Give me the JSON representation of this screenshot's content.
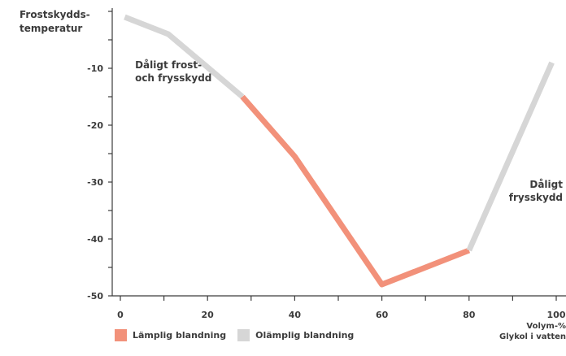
{
  "colors": {
    "suitable": "#f2917a",
    "unsuitable": "#d6d6d6",
    "axis": "#3c3c3c"
  },
  "legend": {
    "suitable_label": "Lämplig blandning",
    "unsuitable_label": "Olämplig blandning"
  },
  "chart_data": {
    "type": "line",
    "ylabel": "Frostskydds-\ntemperatur",
    "xlabel": "Volym-%\nGlykol i vatten",
    "x_ticks": [
      0,
      20,
      40,
      60,
      80,
      100
    ],
    "y_ticks": [
      -10,
      -20,
      -30,
      -40,
      -50
    ],
    "xlim": [
      0,
      100
    ],
    "ylim": [
      -50,
      0
    ],
    "series": [
      {
        "name": "Olämplig blandning",
        "color": "#d6d6d6",
        "x": [
          1,
          11,
          28
        ],
        "y": [
          -1,
          -4,
          -15
        ]
      },
      {
        "name": "Lämplig blandning",
        "color": "#f2917a",
        "x": [
          28,
          40,
          60,
          80
        ],
        "y": [
          -15,
          -25.5,
          -48,
          -42
        ]
      },
      {
        "name": "Olämplig blandning",
        "color": "#d6d6d6",
        "x": [
          80,
          99
        ],
        "y": [
          -42,
          -9
        ]
      }
    ],
    "annotations": [
      {
        "text": "Dåligt frost-\noch frysskydd",
        "x": 3,
        "y": -10
      },
      {
        "text": "Dåligt\nfrysskydd",
        "x": 100,
        "y": -31
      }
    ]
  }
}
